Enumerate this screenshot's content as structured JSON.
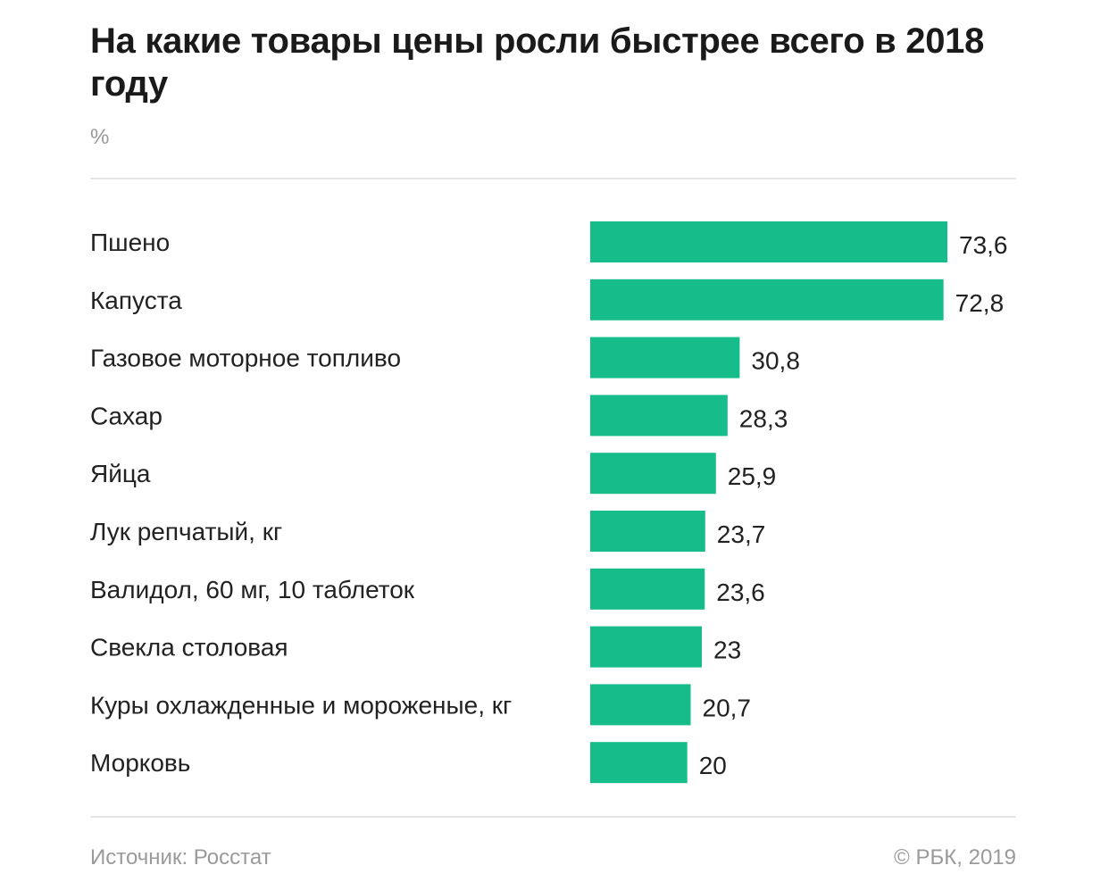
{
  "header": {
    "title": "На какие товары цены росли быстрее всего в 2018 году",
    "unit": "%"
  },
  "footer": {
    "source": "Источник: Росстат",
    "copyright": "© РБК, 2019"
  },
  "colors": {
    "bar": "#16bd8a"
  },
  "chart_data": {
    "type": "bar",
    "orientation": "horizontal",
    "title": "На какие товары цены росли быстрее всего в 2018 году",
    "unit": "%",
    "categories": [
      "Пшено",
      "Капуста",
      "Газовое моторное топливо",
      "Сахар",
      "Яйца",
      "Лук репчатый, кг",
      "Валидол, 60 мг, 10 таблеток",
      "Свекла столовая",
      "Куры охлажденные и мороженые, кг",
      "Морковь"
    ],
    "values": [
      73.6,
      72.8,
      30.8,
      28.3,
      25.9,
      23.7,
      23.6,
      23,
      20.7,
      20
    ],
    "value_labels": [
      "73,6",
      "72,8",
      "30,8",
      "28,3",
      "25,9",
      "23,7",
      "23,6",
      "23",
      "20,7",
      "20"
    ],
    "xlim": [
      0,
      73.6
    ],
    "grid": false,
    "legend": "none"
  }
}
